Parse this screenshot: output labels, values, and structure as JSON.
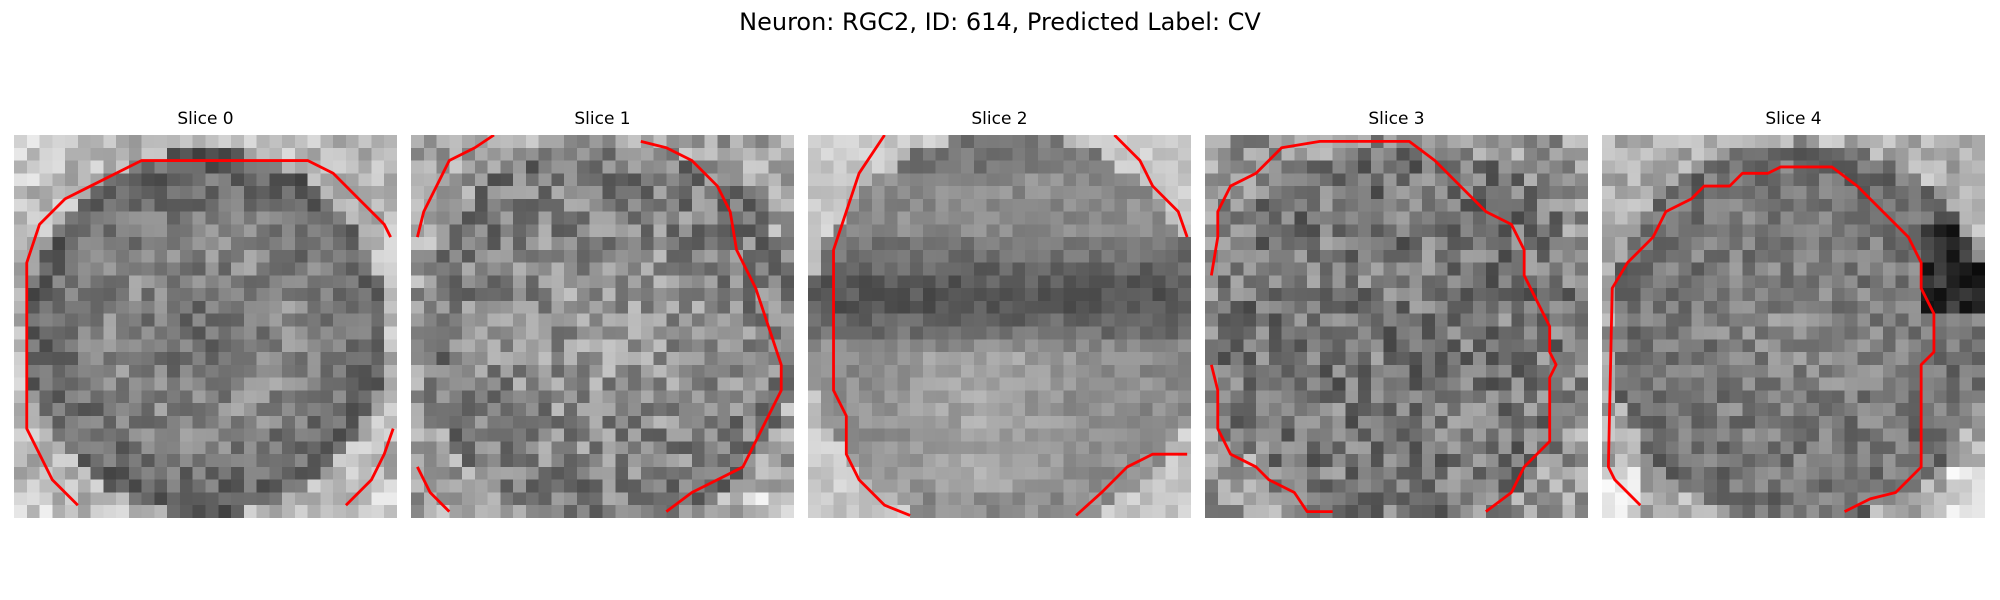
{
  "figure": {
    "title": "Neuron: RGC2, ID: 614, Predicted Label: CV",
    "grid_size": 30,
    "contour_color": "#ff0000",
    "colormap": "gray"
  },
  "panels": [
    {
      "title": "Slice 0"
    },
    {
      "title": "Slice 1"
    },
    {
      "title": "Slice 2"
    },
    {
      "title": "Slice 3"
    },
    {
      "title": "Slice 4"
    }
  ]
}
